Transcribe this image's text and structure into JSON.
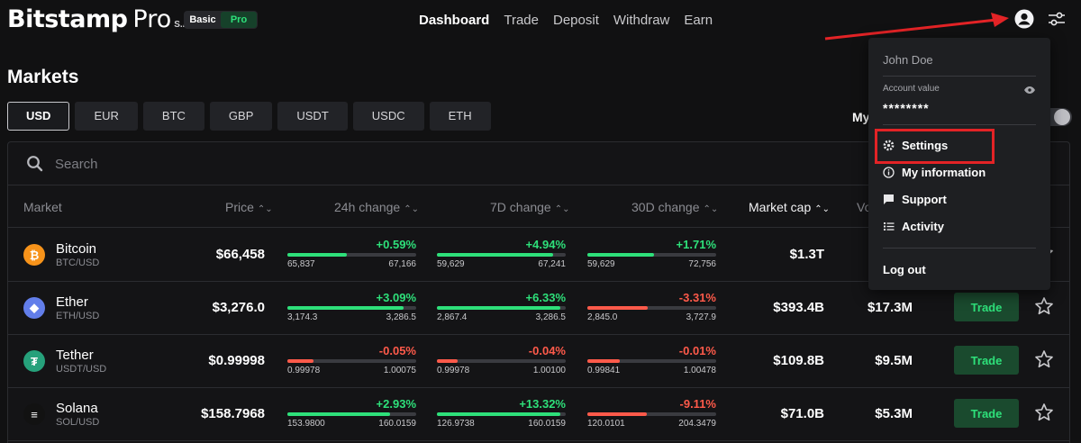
{
  "brand": {
    "name": "Bitstamp",
    "pro": "Pro",
    "suffix": "S.A."
  },
  "mode": {
    "basic": "Basic",
    "pro": "Pro"
  },
  "nav": [
    "Dashboard",
    "Trade",
    "Deposit",
    "Withdraw",
    "Earn"
  ],
  "page_title": "Markets",
  "currency_tabs": [
    "USD",
    "EUR",
    "BTC",
    "GBP",
    "USDT",
    "USDC",
    "ETH"
  ],
  "active_currency": "USD",
  "my_label": "My",
  "search": {
    "placeholder": "Search"
  },
  "columns": {
    "market": "Market",
    "price": "Price",
    "change_24h": "24h change",
    "change_7d": "7D change",
    "change_30d": "30D change",
    "market_cap": "Market cap",
    "volume": "Vo"
  },
  "rows": [
    {
      "name": "Bitcoin",
      "pair": "BTC/USD",
      "price": "$66,458",
      "icon_color": "#f7931a",
      "icon_glyph": "₿",
      "c24": {
        "pct": "+0.59%",
        "dir": "pos",
        "lo": "65,837",
        "hi": "67,166",
        "fill": 0.46
      },
      "c7": {
        "pct": "+4.94%",
        "dir": "pos",
        "lo": "59,629",
        "hi": "67,241",
        "fill": 0.9
      },
      "c30": {
        "pct": "+1.71%",
        "dir": "pos",
        "lo": "59,629",
        "hi": "72,756",
        "fill": 0.52
      },
      "mcap": "$1.3T",
      "vol": "$",
      "trade": ""
    },
    {
      "name": "Ether",
      "pair": "ETH/USD",
      "price": "$3,276.0",
      "icon_color": "#627eea",
      "icon_glyph": "◆",
      "c24": {
        "pct": "+3.09%",
        "dir": "pos",
        "lo": "3,174.3",
        "hi": "3,286.5",
        "fill": 0.9
      },
      "c7": {
        "pct": "+6.33%",
        "dir": "pos",
        "lo": "2,867.4",
        "hi": "3,286.5",
        "fill": 0.96
      },
      "c30": {
        "pct": "-3.31%",
        "dir": "neg",
        "lo": "2,845.0",
        "hi": "3,727.9",
        "fill": 0.47
      },
      "mcap": "$393.4B",
      "vol": "$17.3M",
      "trade": "Trade"
    },
    {
      "name": "Tether",
      "pair": "USDT/USD",
      "price": "$0.99998",
      "icon_color": "#26a17b",
      "icon_glyph": "₮",
      "c24": {
        "pct": "-0.05%",
        "dir": "neg",
        "lo": "0.99978",
        "hi": "1.00075",
        "fill": 0.2
      },
      "c7": {
        "pct": "-0.04%",
        "dir": "neg",
        "lo": "0.99978",
        "hi": "1.00100",
        "fill": 0.16
      },
      "c30": {
        "pct": "-0.01%",
        "dir": "neg",
        "lo": "0.99841",
        "hi": "1.00478",
        "fill": 0.25
      },
      "mcap": "$109.8B",
      "vol": "$9.5M",
      "trade": "Trade"
    },
    {
      "name": "Solana",
      "pair": "SOL/USD",
      "price": "$158.7968",
      "icon_color": "#121212",
      "icon_glyph": "≡",
      "c24": {
        "pct": "+2.93%",
        "dir": "pos",
        "lo": "153.9800",
        "hi": "160.0159",
        "fill": 0.8
      },
      "c7": {
        "pct": "+13.32%",
        "dir": "pos",
        "lo": "126.9738",
        "hi": "160.0159",
        "fill": 0.96
      },
      "c30": {
        "pct": "-9.11%",
        "dir": "neg",
        "lo": "120.0101",
        "hi": "204.3479",
        "fill": 0.46
      },
      "mcap": "$71.0B",
      "vol": "$5.3M",
      "trade": "Trade"
    }
  ],
  "dropdown": {
    "user_name": "John Doe",
    "account_value_label": "Account value",
    "account_value": "********",
    "items": [
      "Settings",
      "My information",
      "Support",
      "Activity"
    ],
    "logout": "Log out"
  },
  "colors": {
    "positive": "#2ee07a",
    "negative": "#ff5a4a",
    "annotation_red": "#e32326"
  }
}
